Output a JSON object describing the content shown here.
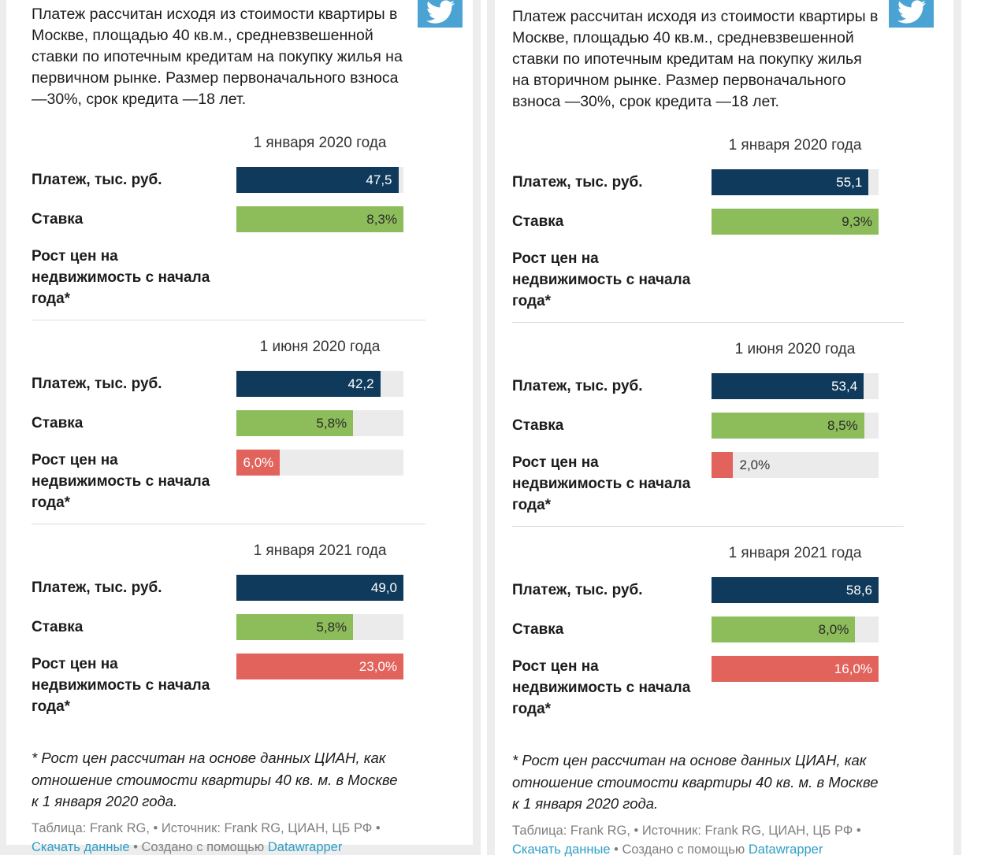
{
  "colors": {
    "payment_bar": "#0f3a5c",
    "rate_bar": "#8dbd5a",
    "growth_bar": "#e2635c",
    "bar_track": "#ebebeb",
    "link": "#2d9fc6",
    "twitter_button": "#4ba3d3"
  },
  "panels": [
    {
      "id": "primary-market",
      "intro": "Платеж рассчитан исходя из стоимости квартиры в Москве, площадью 40 кв.м., средневзвешенной ставки по ипотечным кредитам на покупку жилья на первичном рынке. Размер первоначального взноса —30%, срок кредита —18 лет.",
      "row_labels": {
        "payment": "Платеж, тыс. руб.",
        "rate": "Ставка",
        "growth": "Рост цен на недвижимость с начала года*"
      },
      "sections": [
        {
          "date": "1 января 2020 года",
          "payment": {
            "value": 47.5,
            "label": "47,5"
          },
          "rate": {
            "value": 8.3,
            "label": "8,3%"
          },
          "growth": null
        },
        {
          "date": "1 июня 2020 года",
          "payment": {
            "value": 42.2,
            "label": "42,2"
          },
          "rate": {
            "value": 5.8,
            "label": "5,8%"
          },
          "growth": {
            "value": 6.0,
            "label": "6,0%"
          }
        },
        {
          "date": "1 января 2021 года",
          "payment": {
            "value": 49.0,
            "label": "49,0"
          },
          "rate": {
            "value": 5.8,
            "label": "5,8%"
          },
          "growth": {
            "value": 23.0,
            "label": "23,0%"
          }
        }
      ],
      "footnote": "* Рост цен рассчитан на основе данных ЦИАН, как отношение стоимости квартиры 40 кв. м. в Москве к 1 января 2020 года.",
      "credits": {
        "prefix": "Таблица: Frank RG, • Источник: Frank RG, ЦИАН, ЦБ РФ •",
        "download": "Скачать данные",
        "middle": " • Создано с помощью ",
        "tool": "Datawrapper"
      }
    },
    {
      "id": "secondary-market",
      "intro": "Платеж рассчитан исходя из стоимости квартиры в Москве, площадью 40 кв.м., средневзвешенной ставки по ипотечным кредитам на покупку жилья на вторичном рынке. Размер первоначального взноса —30%, срок кредита —18 лет.",
      "row_labels": {
        "payment": "Платеж, тыс. руб.",
        "rate": "Ставка",
        "growth": "Рост цен на недвижимость с начала года*"
      },
      "sections": [
        {
          "date": "1 января 2020 года",
          "payment": {
            "value": 55.1,
            "label": "55,1"
          },
          "rate": {
            "value": 9.3,
            "label": "9,3%"
          },
          "growth": null
        },
        {
          "date": "1 июня 2020 года",
          "payment": {
            "value": 53.4,
            "label": "53,4"
          },
          "rate": {
            "value": 8.5,
            "label": "8,5%"
          },
          "growth": {
            "value": 2.0,
            "label": "2,0%"
          }
        },
        {
          "date": "1 января 2021 года",
          "payment": {
            "value": 58.6,
            "label": "58,6"
          },
          "rate": {
            "value": 8.0,
            "label": "8,0%"
          },
          "growth": {
            "value": 16.0,
            "label": "16,0%"
          }
        }
      ],
      "footnote": "* Рост цен рассчитан на основе данных ЦИАН, как отношение стоимости квартиры 40 кв. м. в Москве к 1 января 2020 года.",
      "credits": {
        "prefix": "Таблица: Frank RG, • Источник: Frank RG, ЦИАН, ЦБ РФ •",
        "download": "Скачать данные",
        "middle": " • Создано с помощью ",
        "tool": "Datawrapper"
      }
    }
  ],
  "chart_data": [
    {
      "type": "bar",
      "title": "Ипотечный платеж, первичный рынок (Москва, квартира 40 кв.м., взнос 30%, срок 18 лет)",
      "categories": [
        "1 января 2020 года",
        "1 июня 2020 года",
        "1 января 2021 года"
      ],
      "series": [
        {
          "name": "Платеж, тыс. руб.",
          "values": [
            47.5,
            42.2,
            49.0
          ]
        },
        {
          "name": "Ставка",
          "values": [
            8.3,
            5.8,
            5.8
          ],
          "unit": "%"
        },
        {
          "name": "Рост цен на недвижимость с начала года*",
          "values": [
            null,
            6.0,
            23.0
          ],
          "unit": "%"
        }
      ],
      "layout": {
        "orientation": "horizontal",
        "scale": "each metric scaled to its own panel max",
        "grid": false,
        "legend": "none"
      }
    },
    {
      "type": "bar",
      "title": "Ипотечный платеж, вторичный рынок (Москва, квартира 40 кв.м., взнос 30%, срок 18 лет)",
      "categories": [
        "1 января 2020 года",
        "1 июня 2020 года",
        "1 января 2021 года"
      ],
      "series": [
        {
          "name": "Платеж, тыс. руб.",
          "values": [
            55.1,
            53.4,
            58.6
          ]
        },
        {
          "name": "Ставка",
          "values": [
            9.3,
            8.5,
            8.0
          ],
          "unit": "%"
        },
        {
          "name": "Рост цен на недвижимость с начала года*",
          "values": [
            null,
            2.0,
            16.0
          ],
          "unit": "%"
        }
      ],
      "layout": {
        "orientation": "horizontal",
        "scale": "each metric scaled to its own panel max",
        "grid": false,
        "legend": "none"
      }
    }
  ]
}
